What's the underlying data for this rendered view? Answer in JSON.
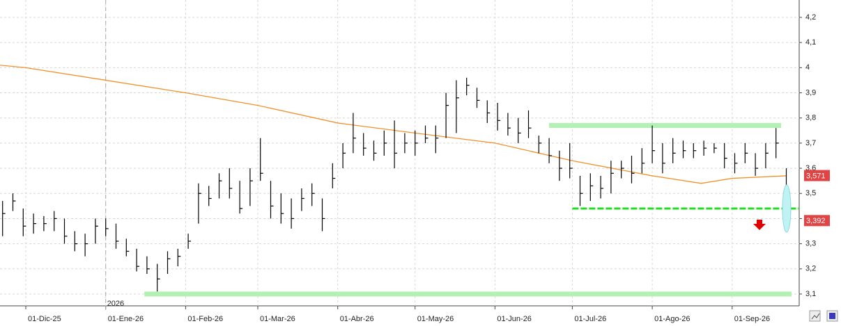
{
  "chart_data": {
    "type": "ohlc",
    "x": [
      "2025-11-22",
      "2025-11-26",
      "2025-11-30",
      "2025-12-04",
      "2025-12-08",
      "2025-12-12",
      "2025-12-16",
      "2025-12-20",
      "2025-12-24",
      "2025-12-28",
      "2026-01-01",
      "2026-01-05",
      "2026-01-09",
      "2026-01-13",
      "2026-01-17",
      "2026-01-21",
      "2026-01-25",
      "2026-01-29",
      "2026-02-02",
      "2026-02-06",
      "2026-02-10",
      "2026-02-14",
      "2026-02-18",
      "2026-02-22",
      "2026-02-26",
      "2026-03-02",
      "2026-03-06",
      "2026-03-10",
      "2026-03-14",
      "2026-03-18",
      "2026-03-22",
      "2026-03-26",
      "2026-03-30",
      "2026-04-03",
      "2026-04-07",
      "2026-04-11",
      "2026-04-15",
      "2026-04-19",
      "2026-04-23",
      "2026-04-27",
      "2026-05-01",
      "2026-05-05",
      "2026-05-09",
      "2026-05-13",
      "2026-05-17",
      "2026-05-21",
      "2026-05-25",
      "2026-05-29",
      "2026-06-02",
      "2026-06-06",
      "2026-06-10",
      "2026-06-14",
      "2026-06-18",
      "2026-06-22",
      "2026-06-26",
      "2026-06-30",
      "2026-07-04",
      "2026-07-08",
      "2026-07-12",
      "2026-07-16",
      "2026-07-20",
      "2026-07-24",
      "2026-07-28",
      "2026-08-01",
      "2026-08-05",
      "2026-08-09",
      "2026-08-13",
      "2026-08-17",
      "2026-08-21",
      "2026-08-25",
      "2026-08-29",
      "2026-09-02",
      "2026-09-06",
      "2026-09-10",
      "2026-09-14",
      "2026-09-18",
      "2026-09-22"
    ],
    "high": [
      3.47,
      3.5,
      3.44,
      3.42,
      3.41,
      3.43,
      3.4,
      3.35,
      3.34,
      3.4,
      3.4,
      3.38,
      3.32,
      3.28,
      3.25,
      3.22,
      3.27,
      3.28,
      3.34,
      3.54,
      3.53,
      3.58,
      3.6,
      3.55,
      3.6,
      3.72,
      3.55,
      3.5,
      3.48,
      3.52,
      3.54,
      3.48,
      3.62,
      3.7,
      3.82,
      3.74,
      3.71,
      3.75,
      3.79,
      3.74,
      3.75,
      3.77,
      3.77,
      3.9,
      3.95,
      3.96,
      3.92,
      3.87,
      3.86,
      3.82,
      3.8,
      3.83,
      3.73,
      3.72,
      3.67,
      3.7,
      3.57,
      3.58,
      3.57,
      3.63,
      3.63,
      3.65,
      3.68,
      3.77,
      3.7,
      3.72,
      3.71,
      3.7,
      3.71,
      3.7,
      3.7,
      3.66,
      3.7,
      3.66,
      3.7,
      3.76,
      3.6
    ],
    "low": [
      3.33,
      3.43,
      3.33,
      3.34,
      3.35,
      3.35,
      3.3,
      3.27,
      3.25,
      3.3,
      3.33,
      3.28,
      3.25,
      3.19,
      3.18,
      3.11,
      3.18,
      3.21,
      3.28,
      3.38,
      3.45,
      3.48,
      3.48,
      3.42,
      3.45,
      3.55,
      3.4,
      3.38,
      3.36,
      3.43,
      3.45,
      3.35,
      3.52,
      3.6,
      3.66,
      3.65,
      3.63,
      3.65,
      3.6,
      3.66,
      3.65,
      3.7,
      3.66,
      3.72,
      3.74,
      3.89,
      3.84,
      3.78,
      3.75,
      3.73,
      3.7,
      3.72,
      3.66,
      3.62,
      3.55,
      3.56,
      3.45,
      3.47,
      3.48,
      3.5,
      3.56,
      3.54,
      3.58,
      3.62,
      3.58,
      3.62,
      3.64,
      3.64,
      3.65,
      3.66,
      3.6,
      3.58,
      3.62,
      3.57,
      3.6,
      3.64,
      3.42
    ],
    "close": [
      3.42,
      3.47,
      3.37,
      3.38,
      3.38,
      3.4,
      3.33,
      3.3,
      3.3,
      3.37,
      3.36,
      3.31,
      3.27,
      3.21,
      3.2,
      3.16,
      3.24,
      3.25,
      3.31,
      3.5,
      3.48,
      3.55,
      3.52,
      3.44,
      3.55,
      3.58,
      3.45,
      3.42,
      3.4,
      3.48,
      3.5,
      3.4,
      3.56,
      3.66,
      3.72,
      3.68,
      3.66,
      3.7,
      3.66,
      3.7,
      3.7,
      3.72,
      3.72,
      3.85,
      3.88,
      3.93,
      3.87,
      3.82,
      3.79,
      3.76,
      3.74,
      3.76,
      3.7,
      3.65,
      3.6,
      3.6,
      3.5,
      3.53,
      3.52,
      3.58,
      3.6,
      3.58,
      3.62,
      3.67,
      3.62,
      3.66,
      3.67,
      3.67,
      3.68,
      3.68,
      3.64,
      3.62,
      3.66,
      3.6,
      3.66,
      3.7,
      3.45
    ],
    "bar_color": "#000000",
    "moving_average": {
      "color": "#f0902a",
      "x": [
        "2025-11-21",
        "2025-12-01",
        "2026-01-01",
        "2026-02-01",
        "2026-03-01",
        "2026-04-01",
        "2026-05-01",
        "2026-06-01",
        "2026-07-01",
        "2026-08-01",
        "2026-08-20",
        "2026-09-01",
        "2026-09-22"
      ],
      "values": [
        4.01,
        4.0,
        3.95,
        3.9,
        3.85,
        3.78,
        3.74,
        3.7,
        3.63,
        3.57,
        3.54,
        3.56,
        3.57
      ]
    },
    "levels": [
      {
        "value": 3.77,
        "start": "2026-06-22",
        "end": "2026-09-20",
        "color": "#b3f0b3",
        "style": "solid"
      },
      {
        "value": 3.1,
        "start": "2026-01-16",
        "end": "2026-09-24",
        "color": "#b3f0b3",
        "style": "solid"
      },
      {
        "value": 3.44,
        "start": "2026-07-01",
        "end": "2026-09-27",
        "color": "#22dd22",
        "style": "dashed"
      }
    ],
    "price_tags": [
      {
        "value": 3.571,
        "label": "3,571"
      },
      {
        "value": 3.392,
        "label": "3,392"
      }
    ],
    "year_marker": {
      "date": "2026-01-01",
      "label": "2026"
    },
    "xlim": [
      "2025-11-21",
      "2026-09-27"
    ],
    "xticks": [
      {
        "value": "2025-12-01",
        "label": "01-Dic-25"
      },
      {
        "value": "2026-01-01",
        "label": "01-Ene-26"
      },
      {
        "value": "2026-02-01",
        "label": "01-Feb-26"
      },
      {
        "value": "2026-03-01",
        "label": "01-Mar-26"
      },
      {
        "value": "2026-04-01",
        "label": "01-Abr-26"
      },
      {
        "value": "2026-05-01",
        "label": "01-May-26"
      },
      {
        "value": "2026-06-01",
        "label": "01-Jun-26"
      },
      {
        "value": "2026-07-01",
        "label": "01-Jul-26"
      },
      {
        "value": "2026-08-01",
        "label": "01-Ago-26"
      },
      {
        "value": "2026-09-01",
        "label": "01-Sep-26"
      }
    ],
    "ylim": [
      3.053,
      4.269
    ],
    "yticks": [
      {
        "value": 3.1,
        "label": "3,1"
      },
      {
        "value": 3.2,
        "label": "3,2"
      },
      {
        "value": 3.3,
        "label": "3,3"
      },
      {
        "value": 3.4,
        "label": "3,4"
      },
      {
        "value": 3.5,
        "label": "3,5"
      },
      {
        "value": 3.6,
        "label": "3,6"
      },
      {
        "value": 3.7,
        "label": "3,7"
      },
      {
        "value": 3.8,
        "label": "3,8"
      },
      {
        "value": 3.9,
        "label": "3,9"
      },
      {
        "value": 4,
        "label": "4"
      },
      {
        "value": 4.1,
        "label": "4,1"
      },
      {
        "value": 4.2,
        "label": "4,2"
      }
    ],
    "grid": true
  }
}
